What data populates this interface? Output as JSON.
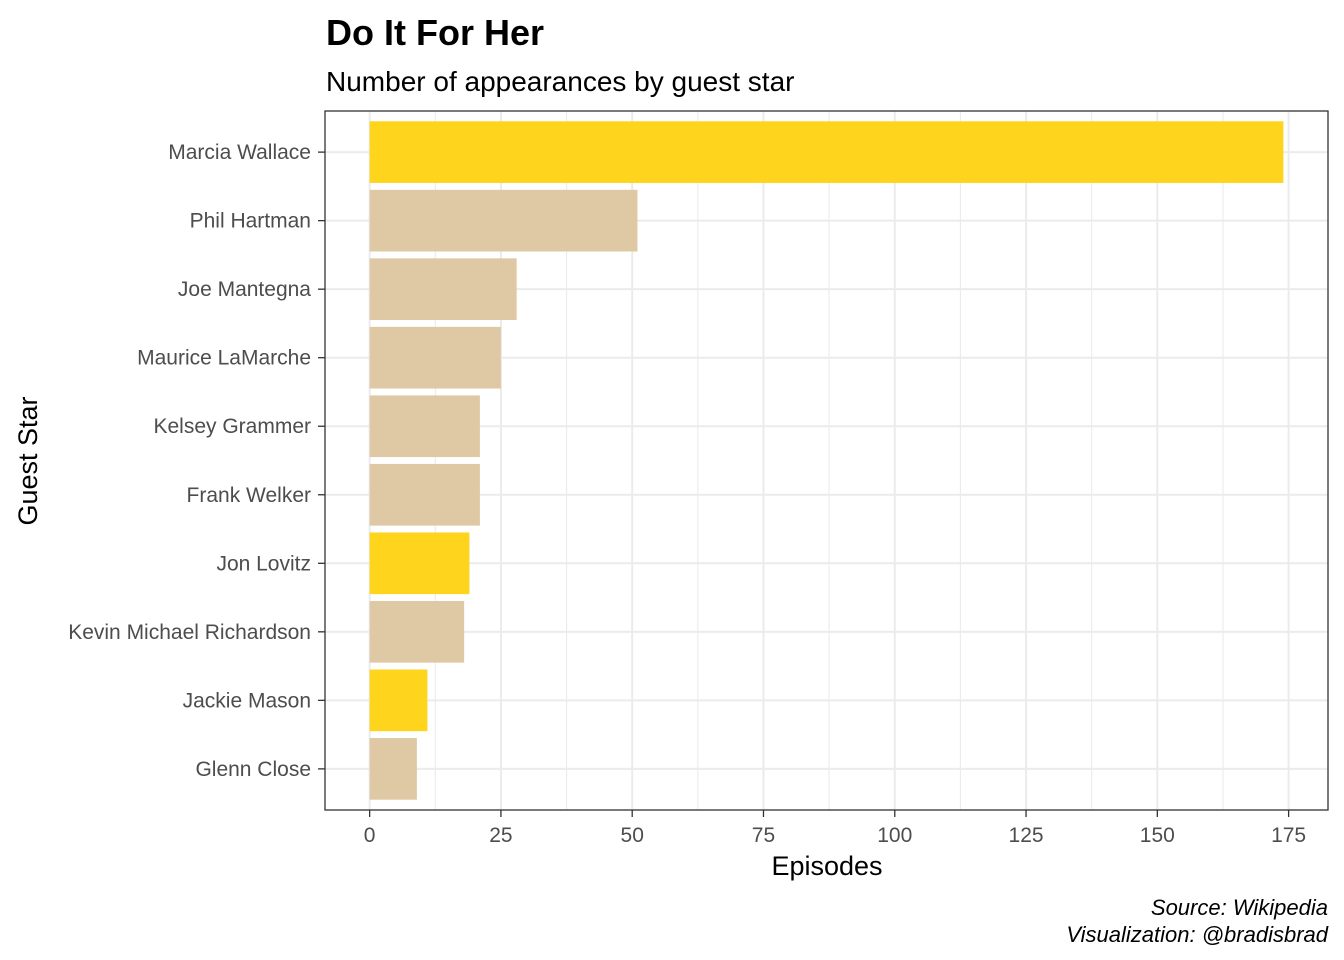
{
  "chart_data": {
    "type": "bar",
    "orientation": "horizontal",
    "title": "Do It For Her",
    "subtitle": "Number of appearances by guest star",
    "xlabel": "Episodes",
    "ylabel": "Guest Star",
    "categories": [
      "Marcia Wallace",
      "Phil Hartman",
      "Joe Mantegna",
      "Maurice LaMarche",
      "Kelsey Grammer",
      "Frank Welker",
      "Jon Lovitz",
      "Kevin Michael Richardson",
      "Jackie Mason",
      "Glenn Close"
    ],
    "values": [
      174,
      51,
      28,
      25,
      21,
      21,
      19,
      18,
      11,
      9
    ],
    "highlighted": [
      true,
      false,
      false,
      false,
      false,
      false,
      true,
      false,
      true,
      false
    ],
    "xlim": [
      -8.5,
      182.5
    ],
    "xticks": [
      0,
      25,
      50,
      75,
      100,
      125,
      150,
      175
    ],
    "grid": true,
    "colors": {
      "highlight": "#FED41D",
      "default": "#DFC9A5",
      "grid": "#ebebeb",
      "panel_border": "#333333"
    },
    "caption_lines": [
      "Source: Wikipedia",
      "Visualization: @bradisbrad"
    ]
  }
}
